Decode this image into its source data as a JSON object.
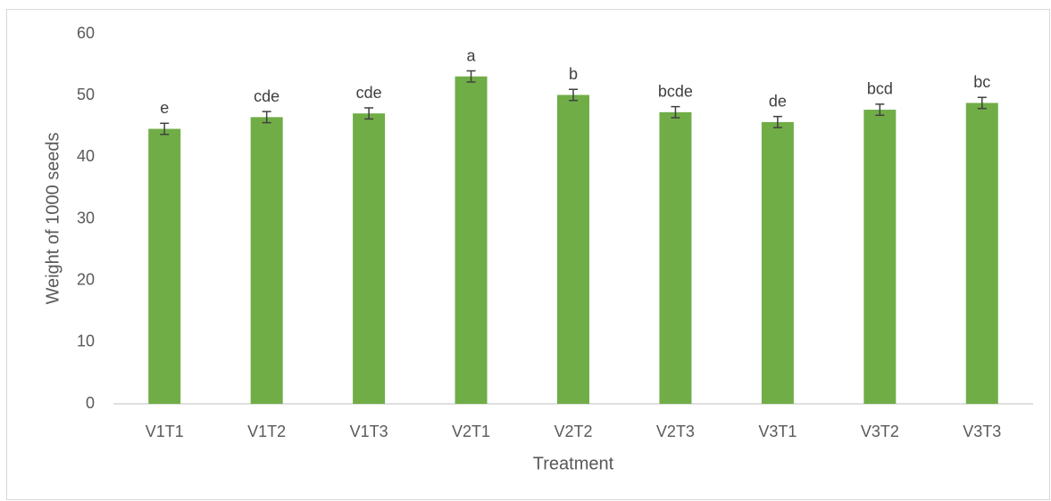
{
  "chart_data": {
    "type": "bar",
    "categories": [
      "V1T1",
      "V1T2",
      "V1T3",
      "V2T1",
      "V2T2",
      "V2T3",
      "V3T1",
      "V3T2",
      "V3T3"
    ],
    "values": [
      44.6,
      46.5,
      47.1,
      53.1,
      50.1,
      47.3,
      45.7,
      47.7,
      48.8
    ],
    "errors": [
      0.9,
      0.9,
      0.9,
      0.9,
      0.9,
      0.9,
      0.9,
      0.9,
      0.9
    ],
    "annotations": [
      "e",
      "cde",
      "cde",
      "a",
      "b",
      "bcde",
      "de",
      "bcd",
      "bc"
    ],
    "color": "#70ad47",
    "x_label": "Treatment",
    "y_label": "Weight of 1000 seeds",
    "ylim": [
      0,
      60
    ],
    "yticks": [
      0,
      10,
      20,
      30,
      40,
      50,
      60
    ],
    "grid": false
  }
}
